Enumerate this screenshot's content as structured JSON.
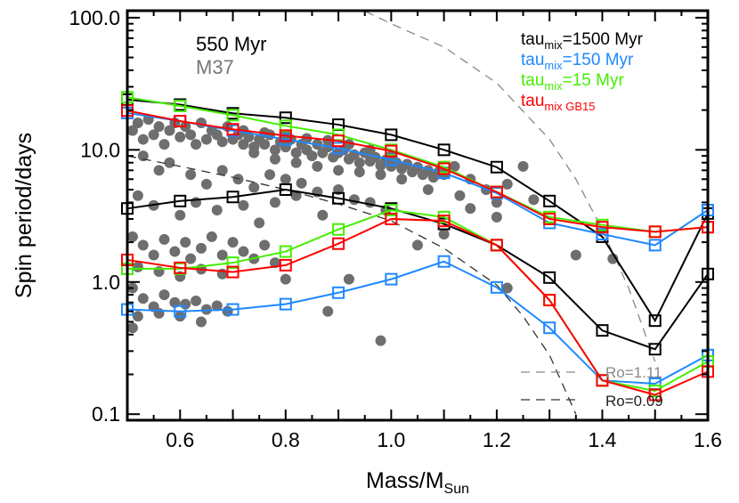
{
  "chart_data": {
    "type": "line",
    "title": "",
    "xlabel": "Mass/M",
    "xlabel_sub": "Sun",
    "ylabel": "Spin period/days",
    "xlim": [
      0.5,
      1.6
    ],
    "ylim": [
      0.09,
      113
    ],
    "yscale": "log",
    "grid": false,
    "xticks": [
      "0.6",
      "0.8",
      "1.0",
      "1.2",
      "1.4",
      "1.6"
    ],
    "xtick_values": [
      0.6,
      0.8,
      1.0,
      1.2,
      1.4,
      1.6
    ],
    "yticks": [
      "0.1",
      "1.0",
      "10.0",
      "100.0"
    ],
    "ytick_values": [
      0.1,
      1,
      10,
      100
    ],
    "annotations": {
      "age": "550 Myr",
      "cluster": "M37",
      "ro_high": "Ro=1.11",
      "ro_low": "Ro=0.09"
    },
    "legend": [
      {
        "main": "tau",
        "sub": "mix",
        "rest": "=1500 Myr",
        "color": "#000000"
      },
      {
        "main": "tau",
        "sub": "mix",
        "rest": "=150 Myr",
        "color": "#1e88ff"
      },
      {
        "main": "tau",
        "sub": "mix",
        "rest": "=15 Myr",
        "color": "#44ee00"
      },
      {
        "main": "tau",
        "sub": "mix GB15",
        "rest": "",
        "color": "#ff0000"
      }
    ],
    "x": [
      0.5,
      0.6,
      0.7,
      0.8,
      0.9,
      1.0,
      1.1,
      1.2,
      1.3,
      1.4,
      1.5,
      1.6
    ],
    "series": [
      {
        "color": "#000000",
        "values": [
          24,
          22,
          18.9,
          17.5,
          15.5,
          13,
          10,
          7.4,
          4.1,
          2.2,
          0.51,
          3.3
        ]
      },
      {
        "color": "#000000",
        "values": [
          3.6,
          4.1,
          4.4,
          5.0,
          4.3,
          3.6,
          2.75,
          1.9,
          1.08,
          0.43,
          0.31,
          1.15
        ]
      },
      {
        "color": "#1e88ff",
        "values": [
          19,
          16.5,
          14,
          12,
          10.3,
          8.4,
          6.7,
          4.7,
          2.8,
          2.3,
          1.9,
          3.5
        ]
      },
      {
        "color": "#1e88ff",
        "values": [
          0.62,
          0.6,
          0.62,
          0.68,
          0.83,
          1.05,
          1.43,
          0.91,
          0.45,
          0.18,
          0.17,
          0.28
        ]
      },
      {
        "color": "#44ee00",
        "values": [
          25,
          21.5,
          18.3,
          15.2,
          13,
          10,
          7.4,
          4.8,
          3.1,
          2.7,
          2.4,
          2.6
        ]
      },
      {
        "color": "#44ee00",
        "values": [
          1.26,
          1.26,
          1.4,
          1.7,
          2.5,
          3.5,
          3.1,
          1.9,
          0.73,
          0.18,
          0.15,
          0.25
        ]
      },
      {
        "color": "#ff0000",
        "values": [
          19.8,
          16.5,
          14.3,
          12.8,
          11.7,
          9.8,
          7.2,
          4.8,
          3.0,
          2.6,
          2.4,
          2.6
        ]
      },
      {
        "color": "#ff0000",
        "values": [
          1.47,
          1.28,
          1.19,
          1.34,
          1.95,
          3.0,
          2.9,
          1.9,
          0.73,
          0.18,
          0.14,
          0.21
        ]
      }
    ],
    "rossby_curves": [
      {
        "label": "Ro=1.11",
        "color": "#888888",
        "x": [
          0.5,
          0.7,
          0.9,
          1.0,
          1.1,
          1.2,
          1.3,
          1.35,
          1.4,
          1.45,
          1.5
        ],
        "values": [
          600,
          260,
          140,
          90,
          60,
          32,
          12,
          6,
          2.5,
          0.9,
          0.25
        ]
      },
      {
        "label": "Ro=0.09",
        "color": "#333333",
        "x": [
          0.5,
          0.6,
          0.7,
          0.8,
          0.9,
          1.0,
          1.1,
          1.2,
          1.25,
          1.3,
          1.35
        ],
        "values": [
          9,
          7.5,
          6.2,
          5.0,
          3.9,
          2.9,
          1.8,
          0.95,
          0.55,
          0.28,
          0.1
        ]
      }
    ],
    "scatter": {
      "name": "M37",
      "color": "#6e6e6e",
      "points": [
        [
          0.51,
          14
        ],
        [
          0.52,
          16
        ],
        [
          0.53,
          12
        ],
        [
          0.54,
          17
        ],
        [
          0.55,
          13
        ],
        [
          0.56,
          15
        ],
        [
          0.57,
          11
        ],
        [
          0.58,
          14
        ],
        [
          0.59,
          16
        ],
        [
          0.6,
          12.5
        ],
        [
          0.61,
          15
        ],
        [
          0.62,
          13
        ],
        [
          0.63,
          11
        ],
        [
          0.64,
          16
        ],
        [
          0.65,
          12
        ],
        [
          0.66,
          14
        ],
        [
          0.67,
          13
        ],
        [
          0.68,
          11.5
        ],
        [
          0.69,
          15
        ],
        [
          0.7,
          12
        ],
        [
          0.71,
          13
        ],
        [
          0.72,
          11
        ],
        [
          0.73,
          12.5
        ],
        [
          0.74,
          10.5
        ],
        [
          0.75,
          12
        ],
        [
          0.76,
          11
        ],
        [
          0.77,
          13
        ],
        [
          0.78,
          10
        ],
        [
          0.79,
          11.5
        ],
        [
          0.8,
          10.5
        ],
        [
          0.81,
          12
        ],
        [
          0.82,
          9.5
        ],
        [
          0.83,
          11
        ],
        [
          0.84,
          10
        ],
        [
          0.85,
          9
        ],
        [
          0.86,
          11
        ],
        [
          0.87,
          9.5
        ],
        [
          0.88,
          10.5
        ],
        [
          0.89,
          8.8
        ],
        [
          0.9,
          9.5
        ],
        [
          0.91,
          10
        ],
        [
          0.92,
          8.5
        ],
        [
          0.93,
          9.2
        ],
        [
          0.94,
          8
        ],
        [
          0.95,
          9.5
        ],
        [
          0.96,
          8.2
        ],
        [
          0.97,
          8.8
        ],
        [
          0.98,
          7.6
        ],
        [
          0.99,
          8.4
        ],
        [
          1.0,
          7.5
        ],
        [
          1.01,
          8
        ],
        [
          1.02,
          7.2
        ],
        [
          1.03,
          7.8
        ],
        [
          1.04,
          6.8
        ],
        [
          1.05,
          7.4
        ],
        [
          1.06,
          6.5
        ],
        [
          1.07,
          7
        ],
        [
          1.08,
          6.2
        ],
        [
          1.09,
          6.8
        ],
        [
          1.1,
          6.5
        ],
        [
          0.72,
          14
        ],
        [
          0.76,
          13.5
        ],
        [
          0.8,
          13
        ],
        [
          0.84,
          12.2
        ],
        [
          0.88,
          11.8
        ],
        [
          0.92,
          11
        ],
        [
          0.96,
          10
        ],
        [
          1.0,
          9
        ],
        [
          0.74,
          9.5
        ],
        [
          0.78,
          8.5
        ],
        [
          0.82,
          8
        ],
        [
          0.86,
          7.5
        ],
        [
          0.9,
          7
        ],
        [
          0.94,
          6.8
        ],
        [
          0.98,
          6.5
        ],
        [
          1.02,
          6
        ],
        [
          0.53,
          9
        ],
        [
          0.56,
          7
        ],
        [
          0.58,
          8
        ],
        [
          0.62,
          6.5
        ],
        [
          0.65,
          5.5
        ],
        [
          0.68,
          7
        ],
        [
          0.71,
          6
        ],
        [
          0.74,
          5.2
        ],
        [
          0.77,
          6.5
        ],
        [
          0.8,
          6
        ],
        [
          0.83,
          5.6
        ],
        [
          0.86,
          4.8
        ],
        [
          0.9,
          5
        ],
        [
          0.93,
          4.2
        ],
        [
          0.96,
          4
        ],
        [
          0.99,
          3.5
        ],
        [
          0.52,
          4.5
        ],
        [
          0.55,
          3.8
        ],
        [
          0.6,
          3.2
        ],
        [
          0.63,
          4
        ],
        [
          0.67,
          3.5
        ],
        [
          0.72,
          3.8
        ],
        [
          0.75,
          2.8
        ],
        [
          0.78,
          4
        ],
        [
          0.82,
          4.5
        ],
        [
          0.87,
          3.2
        ],
        [
          0.51,
          2.2
        ],
        [
          0.53,
          1.9
        ],
        [
          0.55,
          1.6
        ],
        [
          0.57,
          2.1
        ],
        [
          0.59,
          1.7
        ],
        [
          0.61,
          2
        ],
        [
          0.62,
          1.5
        ],
        [
          0.64,
          1.8
        ],
        [
          0.66,
          2.2
        ],
        [
          0.68,
          1.6
        ],
        [
          0.7,
          2
        ],
        [
          0.72,
          1.7
        ],
        [
          0.74,
          1.5
        ],
        [
          0.76,
          1.9
        ],
        [
          0.78,
          1.4
        ],
        [
          0.52,
          1.3
        ],
        [
          0.56,
          1.2
        ],
        [
          0.6,
          1.1
        ],
        [
          0.64,
          1.25
        ],
        [
          0.68,
          1.15
        ],
        [
          0.51,
          0.9
        ],
        [
          0.53,
          0.75
        ],
        [
          0.55,
          0.65
        ],
        [
          0.57,
          0.8
        ],
        [
          0.59,
          0.7
        ],
        [
          0.61,
          0.68
        ],
        [
          0.63,
          0.72
        ],
        [
          0.65,
          0.62
        ],
        [
          0.67,
          0.66
        ],
        [
          0.69,
          0.6
        ],
        [
          0.52,
          0.55
        ],
        [
          0.56,
          0.58
        ],
        [
          0.6,
          0.55
        ],
        [
          0.64,
          0.5
        ],
        [
          0.51,
          0.45
        ],
        [
          1.12,
          7.5
        ],
        [
          1.15,
          6
        ],
        [
          1.18,
          5
        ],
        [
          1.2,
          4
        ],
        [
          1.22,
          5.5
        ],
        [
          1.25,
          7.5
        ],
        [
          1.27,
          4.2
        ],
        [
          1.15,
          3.6
        ],
        [
          1.2,
          3.1
        ],
        [
          1.13,
          4.5
        ],
        [
          1.35,
          1.6
        ],
        [
          1.42,
          1.5
        ],
        [
          1.22,
          0.9
        ],
        [
          0.88,
          0.6
        ],
        [
          0.98,
          0.36
        ],
        [
          0.92,
          1.05
        ],
        [
          0.8,
          1.05
        ],
        [
          1.05,
          1.9
        ],
        [
          1.1,
          2.3
        ],
        [
          1.07,
          5
        ]
      ]
    }
  }
}
